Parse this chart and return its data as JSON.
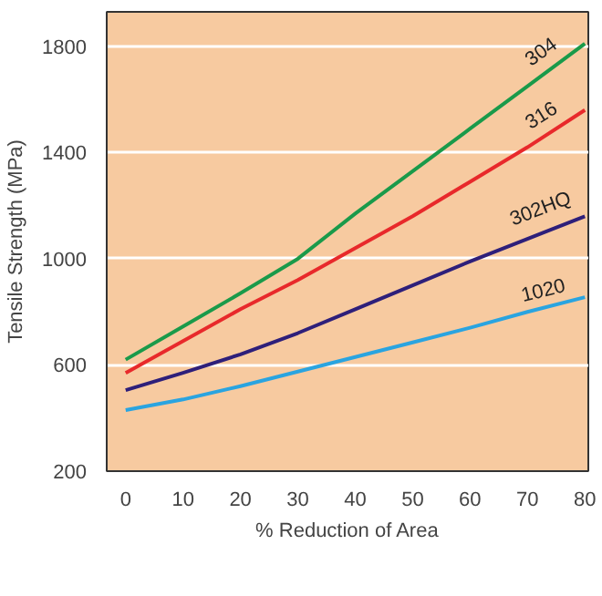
{
  "chart_data": {
    "type": "line",
    "xlabel": "% Reduction of Area",
    "ylabel": "Tensile Strength (MPa)",
    "x": [
      0,
      10,
      20,
      30,
      40,
      50,
      60,
      70,
      80
    ],
    "series": [
      {
        "name": "304",
        "color": "#1a9a4a",
        "values": [
          620,
          745,
          870,
          1000,
          1170,
          1330,
          1490,
          1650,
          1810
        ]
      },
      {
        "name": "316",
        "color": "#e8292b",
        "values": [
          570,
          690,
          810,
          920,
          1040,
          1160,
          1290,
          1420,
          1560
        ]
      },
      {
        "name": "302HQ",
        "color": "#2e1f7a",
        "values": [
          505,
          570,
          640,
          720,
          810,
          900,
          990,
          1075,
          1160
        ]
      },
      {
        "name": "1020",
        "color": "#2aa4e0",
        "values": [
          430,
          470,
          520,
          575,
          630,
          685,
          740,
          800,
          855
        ]
      }
    ],
    "xlim": [
      -3.3,
      80.6
    ],
    "ylim": [
      200,
      1930
    ],
    "xticks": [
      0,
      10,
      20,
      30,
      40,
      50,
      60,
      70,
      80
    ],
    "yticks": [
      200,
      600,
      1000,
      1400,
      1800
    ],
    "grid": "y",
    "marker": "none",
    "line_style": "solid"
  }
}
